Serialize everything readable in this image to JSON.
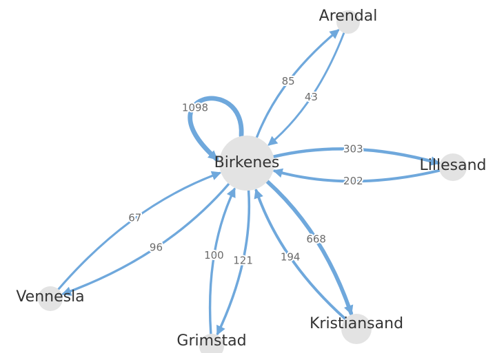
{
  "nodes": [
    {
      "label": "Birkenes"
    },
    {
      "label": "Arendal"
    },
    {
      "label": "Lillesand"
    },
    {
      "label": "Kristiansand"
    },
    {
      "label": "Grimstad"
    },
    {
      "label": "Vennesla"
    }
  ],
  "edges": [
    {
      "source": 0,
      "target": 0,
      "value": 1098
    },
    {
      "source": 0,
      "target": 1,
      "value": 85
    },
    {
      "source": 1,
      "target": 0,
      "value": 43
    },
    {
      "source": 0,
      "target": 2,
      "value": 303
    },
    {
      "source": 2,
      "target": 0,
      "value": 202
    },
    {
      "source": 0,
      "target": 3,
      "value": 668
    },
    {
      "source": 3,
      "target": 0,
      "value": 194
    },
    {
      "source": 0,
      "target": 4,
      "value": 121
    },
    {
      "source": 4,
      "target": 0,
      "value": 100
    },
    {
      "source": 5,
      "target": 0,
      "value": 67
    },
    {
      "source": 0,
      "target": 5,
      "value": 96
    }
  ]
}
